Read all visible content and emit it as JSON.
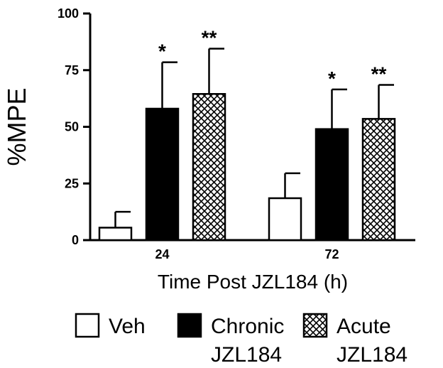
{
  "chart_data": {
    "type": "bar",
    "title": "",
    "xlabel": "Time Post JZL184 (h)",
    "ylabel": "%MPE",
    "ylim": [
      0,
      100
    ],
    "yticks": [
      "0",
      "25",
      "50",
      "75",
      "100"
    ],
    "categories": [
      "24",
      "72"
    ],
    "series": [
      {
        "name": "Veh",
        "label_lines": [
          "Veh"
        ],
        "pattern": "open",
        "values": [
          5.5,
          18.5
        ],
        "errors": [
          7,
          11
        ],
        "significance": [
          "",
          ""
        ]
      },
      {
        "name": "Chronic JZL184",
        "label_lines": [
          "Chronic",
          "JZL184"
        ],
        "pattern": "solid",
        "values": [
          58,
          49
        ],
        "errors": [
          20.5,
          17.5
        ],
        "significance": [
          "*",
          "*"
        ]
      },
      {
        "name": "Acute JZL184",
        "label_lines": [
          "Acute",
          "JZL184"
        ],
        "pattern": "crosshatch",
        "values": [
          64.5,
          53.5
        ],
        "errors": [
          20,
          15
        ],
        "significance": [
          "**",
          "**"
        ]
      }
    ],
    "legend_position": "bottom",
    "grid": false,
    "colors": {
      "axis": "#000000",
      "solid": "#000000",
      "open": "#ffffff"
    }
  }
}
